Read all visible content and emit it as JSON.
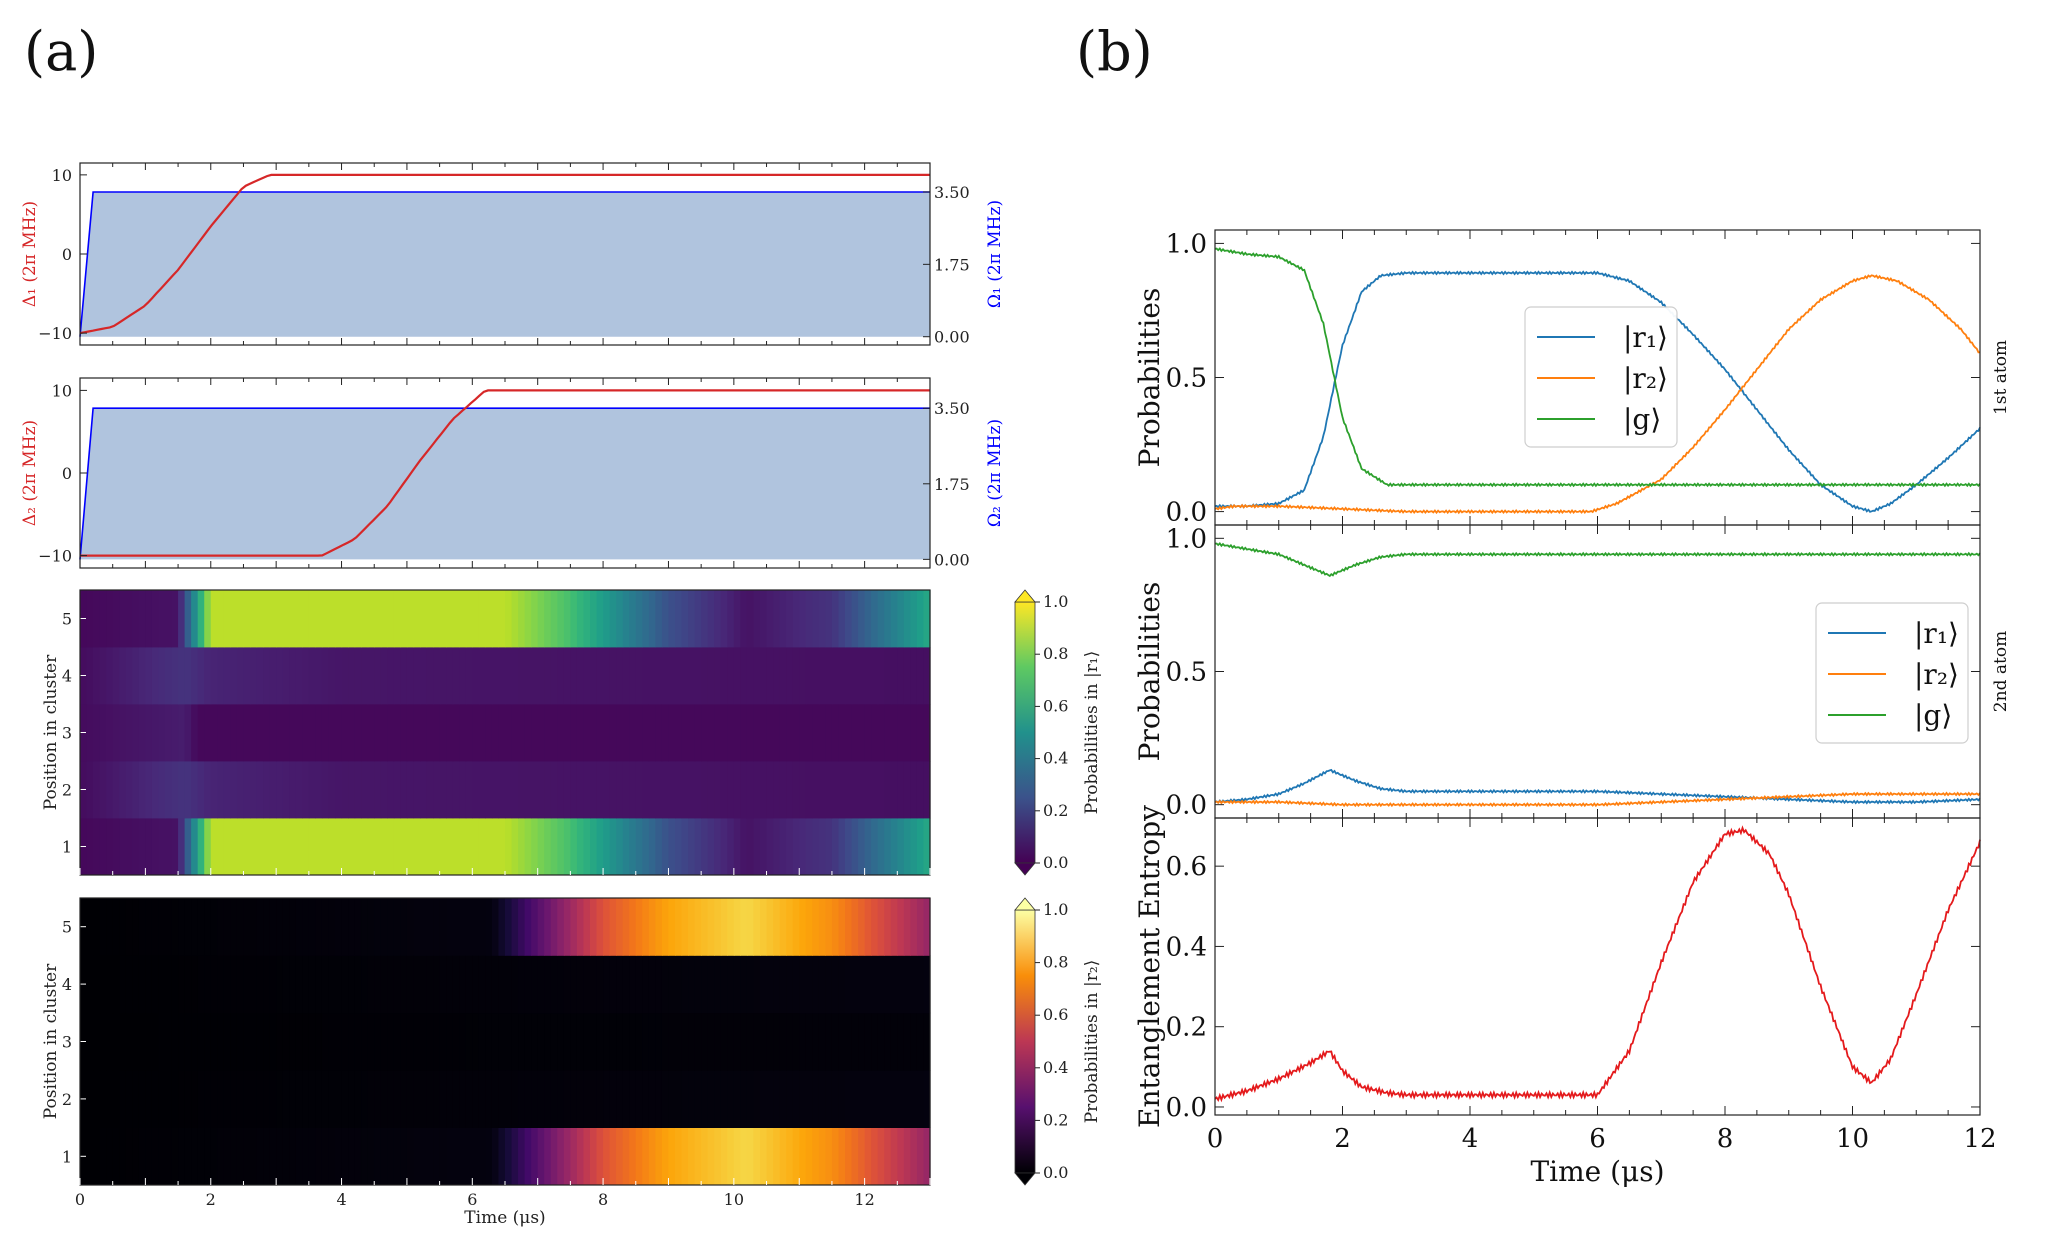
{
  "panel_labels": [
    "(a)",
    "(b)"
  ],
  "colors": {
    "detuning": "#d62728",
    "rabi": "#0000ff",
    "rabi_fill": "#b0c4de",
    "r1": "#1f77b4",
    "r2": "#ff7f0e",
    "g": "#2ca02c",
    "entropy": "#e41a1c"
  },
  "chart_data": [
    {
      "id": "a1",
      "type": "line",
      "ylabel_left": "Δ₁ (2π MHz)",
      "ylabel_right": "Ω₁ (2π MHz)",
      "xlim": [
        0,
        13
      ],
      "ylim_left": [
        -11.5,
        11.5
      ],
      "ylim_right": [
        -0.2,
        4.2
      ],
      "yticks_left": [
        "10",
        "0",
        "−10"
      ],
      "yticks_right": [
        "3.50",
        "1.75",
        "0.00"
      ],
      "series": [
        {
          "kind": "detuning",
          "x": [
            0,
            0.5,
            1.0,
            1.5,
            2.0,
            2.5,
            2.9,
            13
          ],
          "y": [
            -10,
            -9.2,
            -6.5,
            -2.0,
            3.5,
            8.5,
            10,
            10
          ]
        },
        {
          "kind": "rabi",
          "x": [
            0,
            0.2,
            13
          ],
          "y": [
            0,
            3.5,
            3.5
          ]
        }
      ]
    },
    {
      "id": "a2",
      "type": "line",
      "ylabel_left": "Δ₂ (2π MHz)",
      "ylabel_right": "Ω₂ (2π MHz)",
      "xlim": [
        0,
        13
      ],
      "ylim_left": [
        -11.5,
        11.5
      ],
      "ylim_right": [
        -0.2,
        4.2
      ],
      "yticks_left": [
        "10",
        "0",
        "−10"
      ],
      "yticks_right": [
        "3.50",
        "1.75",
        "0.00"
      ],
      "series": [
        {
          "kind": "detuning",
          "x": [
            0,
            3.7,
            4.2,
            4.7,
            5.2,
            5.7,
            6.2,
            13
          ],
          "y": [
            -10,
            -10,
            -8.0,
            -4.0,
            1.5,
            6.5,
            10,
            10
          ]
        },
        {
          "kind": "rabi",
          "x": [
            0,
            0.2,
            13
          ],
          "y": [
            0,
            3.5,
            3.5
          ]
        }
      ]
    },
    {
      "id": "a3",
      "type": "heatmap",
      "colormap": "viridis",
      "ylabel": "Position in cluster",
      "colorbar_label": "Probabilities in |r₁⟩",
      "rows": [
        "1",
        "2",
        "3",
        "4",
        "5"
      ],
      "colorbar_ticks": [
        "1.0",
        "0.8",
        "0.6",
        "0.4",
        "0.2",
        "0.0"
      ],
      "xlim": [
        0,
        13
      ],
      "row_values": [
        {
          "t": [
            0,
            1.5,
            2.0,
            6.5,
            7.5,
            9.0,
            10.2,
            11.5,
            13
          ],
          "v": [
            0.02,
            0.05,
            0.9,
            0.9,
            0.7,
            0.25,
            0.05,
            0.15,
            0.6
          ]
        },
        {
          "t": [
            0,
            1.6,
            2.0,
            4,
            13
          ],
          "v": [
            0.03,
            0.15,
            0.1,
            0.06,
            0.04
          ]
        },
        {
          "t": [
            0,
            1.6,
            1.8,
            13
          ],
          "v": [
            0.03,
            0.08,
            0.02,
            0.02
          ]
        },
        {
          "t": [
            0,
            1.6,
            2.0,
            4,
            13
          ],
          "v": [
            0.03,
            0.15,
            0.1,
            0.06,
            0.04
          ]
        },
        {
          "t": [
            0,
            1.5,
            2.0,
            6.5,
            7.5,
            9.0,
            10.2,
            11.5,
            13
          ],
          "v": [
            0.02,
            0.05,
            0.9,
            0.9,
            0.7,
            0.25,
            0.05,
            0.15,
            0.6
          ]
        }
      ]
    },
    {
      "id": "a4",
      "type": "heatmap",
      "colormap": "inferno",
      "ylabel": "Position in cluster",
      "xlabel": "Time (μs)",
      "colorbar_label": "Probabilities in |r₂⟩",
      "rows": [
        "1",
        "2",
        "3",
        "4",
        "5"
      ],
      "xticks": [
        "0",
        "2",
        "4",
        "6",
        "8",
        "10",
        "12"
      ],
      "colorbar_ticks": [
        "1.0",
        "0.8",
        "0.6",
        "0.4",
        "0.2",
        "0.0"
      ],
      "xlim": [
        0,
        13
      ],
      "row_values": [
        {
          "t": [
            0,
            6.3,
            7.0,
            8.0,
            9.0,
            10.2,
            11.5,
            13
          ],
          "v": [
            0,
            0.02,
            0.25,
            0.6,
            0.8,
            0.9,
            0.75,
            0.4
          ]
        },
        {
          "t": [
            0,
            13
          ],
          "v": [
            0,
            0.02
          ]
        },
        {
          "t": [
            0,
            13
          ],
          "v": [
            0,
            0.01
          ]
        },
        {
          "t": [
            0,
            13
          ],
          "v": [
            0,
            0.02
          ]
        },
        {
          "t": [
            0,
            6.3,
            7.0,
            8.0,
            9.0,
            10.2,
            11.5,
            13
          ],
          "v": [
            0,
            0.02,
            0.25,
            0.6,
            0.8,
            0.9,
            0.75,
            0.4
          ]
        }
      ]
    },
    {
      "id": "b1",
      "type": "line",
      "ylabel": "Probabilities",
      "side_label": "1st atom",
      "xlim": [
        0,
        12
      ],
      "ylim": [
        -0.05,
        1.05
      ],
      "yticks": [
        "1.0",
        "0.5",
        "0.0"
      ],
      "legend": [
        "|r₁⟩",
        "|r₂⟩",
        "|g⟩"
      ],
      "series": [
        {
          "name": "|r₁⟩",
          "x": [
            0,
            0.5,
            1.0,
            1.4,
            1.7,
            2.0,
            2.3,
            2.6,
            3.0,
            4,
            5,
            6,
            6.5,
            7,
            7.5,
            8,
            8.5,
            9,
            9.5,
            10,
            10.3,
            10.6,
            11,
            11.5,
            12
          ],
          "y": [
            0.02,
            0.02,
            0.03,
            0.08,
            0.28,
            0.62,
            0.82,
            0.88,
            0.89,
            0.89,
            0.89,
            0.89,
            0.86,
            0.78,
            0.66,
            0.53,
            0.38,
            0.23,
            0.1,
            0.02,
            0.0,
            0.03,
            0.1,
            0.2,
            0.31
          ]
        },
        {
          "name": "|r₂⟩",
          "x": [
            0,
            0.3,
            1.0,
            2.0,
            3,
            4,
            5,
            5.9,
            6.3,
            7,
            7.5,
            8,
            8.5,
            9,
            9.5,
            10,
            10.3,
            10.7,
            11.2,
            11.7,
            12
          ],
          "y": [
            0.01,
            0.02,
            0.02,
            0.01,
            0.0,
            0.0,
            0.0,
            0.0,
            0.03,
            0.12,
            0.24,
            0.38,
            0.53,
            0.68,
            0.79,
            0.86,
            0.88,
            0.86,
            0.79,
            0.68,
            0.59
          ]
        },
        {
          "name": "|g⟩",
          "x": [
            0,
            0.5,
            1.0,
            1.4,
            1.7,
            2.0,
            2.3,
            2.7,
            3.0,
            4,
            5,
            6,
            7,
            8,
            9,
            10,
            11,
            12
          ],
          "y": [
            0.98,
            0.96,
            0.95,
            0.9,
            0.7,
            0.35,
            0.16,
            0.1,
            0.1,
            0.1,
            0.1,
            0.1,
            0.1,
            0.1,
            0.1,
            0.1,
            0.1,
            0.1
          ]
        }
      ]
    },
    {
      "id": "b2",
      "type": "line",
      "ylabel": "Probabilities",
      "side_label": "2nd atom",
      "xlim": [
        0,
        12
      ],
      "ylim": [
        -0.05,
        1.05
      ],
      "yticks": [
        "1.0",
        "0.5",
        "0.0"
      ],
      "legend": [
        "|r₁⟩",
        "|r₂⟩",
        "|g⟩"
      ],
      "series": [
        {
          "name": "|r₁⟩",
          "x": [
            0,
            0.5,
            1.0,
            1.4,
            1.8,
            2.2,
            2.6,
            3.0,
            4,
            5,
            6,
            7,
            8,
            9,
            10,
            11,
            12
          ],
          "y": [
            0.01,
            0.02,
            0.04,
            0.08,
            0.13,
            0.09,
            0.06,
            0.05,
            0.05,
            0.05,
            0.05,
            0.04,
            0.03,
            0.02,
            0.01,
            0.01,
            0.02
          ]
        },
        {
          "name": "|r₂⟩",
          "x": [
            0,
            1,
            2,
            3,
            4,
            5,
            6,
            7,
            8,
            9,
            10,
            11,
            12
          ],
          "y": [
            0.01,
            0.01,
            0.0,
            0.0,
            0.0,
            0.0,
            0.0,
            0.01,
            0.02,
            0.03,
            0.04,
            0.04,
            0.04
          ]
        },
        {
          "name": "|g⟩",
          "x": [
            0,
            0.5,
            1.0,
            1.4,
            1.8,
            2.2,
            2.6,
            3.0,
            4,
            5,
            6,
            7,
            8,
            9,
            10,
            11,
            12
          ],
          "y": [
            0.98,
            0.96,
            0.94,
            0.9,
            0.86,
            0.9,
            0.93,
            0.94,
            0.94,
            0.94,
            0.94,
            0.94,
            0.94,
            0.94,
            0.94,
            0.94,
            0.94
          ]
        }
      ]
    },
    {
      "id": "b3",
      "type": "line",
      "ylabel": "Entanglement Entropy",
      "xlabel": "Time (μs)",
      "xlim": [
        0,
        12
      ],
      "ylim": [
        -0.02,
        0.72
      ],
      "yticks": [
        "0.6",
        "0.4",
        "0.2",
        "0.0"
      ],
      "xticks": [
        "0",
        "2",
        "4",
        "6",
        "8",
        "10",
        "12"
      ],
      "series": [
        {
          "name": "entropy",
          "x": [
            0,
            0.5,
            1.0,
            1.5,
            1.8,
            2.0,
            2.3,
            2.7,
            3,
            4,
            5,
            6,
            6.5,
            7,
            7.5,
            8,
            8.3,
            8.7,
            9,
            9.5,
            10,
            10.3,
            10.6,
            11,
            11.5,
            12
          ],
          "y": [
            0.02,
            0.04,
            0.07,
            0.11,
            0.14,
            0.09,
            0.05,
            0.035,
            0.03,
            0.03,
            0.03,
            0.03,
            0.14,
            0.36,
            0.56,
            0.68,
            0.69,
            0.63,
            0.53,
            0.3,
            0.1,
            0.06,
            0.12,
            0.28,
            0.49,
            0.66
          ]
        }
      ]
    }
  ]
}
